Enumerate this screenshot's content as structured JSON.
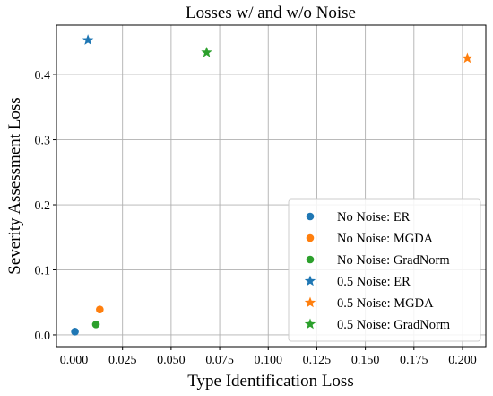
{
  "chart_data": {
    "type": "scatter",
    "title": "Losses w/ and w/o Noise",
    "xlabel": "Type Identification Loss",
    "ylabel": "Severity Assessment Loss",
    "xlim": [
      -0.009,
      0.212
    ],
    "ylim": [
      -0.018,
      0.476
    ],
    "xticks": [
      0.0,
      0.025,
      0.05,
      0.075,
      0.1,
      0.125,
      0.15,
      0.175,
      0.2
    ],
    "xtick_labels": [
      "0.000",
      "0.025",
      "0.050",
      "0.075",
      "0.100",
      "0.125",
      "0.150",
      "0.175",
      "0.200"
    ],
    "yticks": [
      0.0,
      0.1,
      0.2,
      0.3,
      0.4
    ],
    "ytick_labels": [
      "0.0",
      "0.1",
      "0.2",
      "0.3",
      "0.4"
    ],
    "grid": true,
    "legend_position": "lower right",
    "series": [
      {
        "name": "No Noise: ER",
        "marker": "circle",
        "color": "#1f77b4",
        "x": [
          0.0005
        ],
        "y": [
          0.005
        ]
      },
      {
        "name": "No Noise: MGDA",
        "marker": "circle",
        "color": "#ff7f0e",
        "x": [
          0.0133
        ],
        "y": [
          0.039
        ]
      },
      {
        "name": "No Noise: GradNorm",
        "marker": "circle",
        "color": "#2ca02c",
        "x": [
          0.0113
        ],
        "y": [
          0.016
        ]
      },
      {
        "name": "0.5 Noise: ER",
        "marker": "star",
        "color": "#1f77b4",
        "x": [
          0.0072
        ],
        "y": [
          0.453
        ]
      },
      {
        "name": "0.5 Noise: MGDA",
        "marker": "star",
        "color": "#ff7f0e",
        "x": [
          0.2025
        ],
        "y": [
          0.425
        ]
      },
      {
        "name": "0.5 Noise: GradNorm",
        "marker": "star",
        "color": "#2ca02c",
        "x": [
          0.0683
        ],
        "y": [
          0.434
        ]
      }
    ]
  }
}
